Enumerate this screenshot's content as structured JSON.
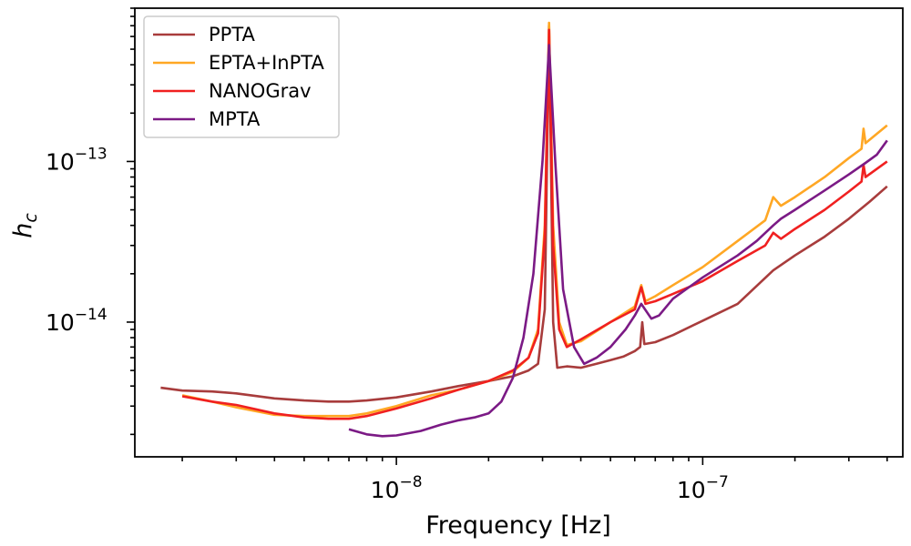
{
  "chart_data": {
    "type": "line",
    "xscale": "log",
    "yscale": "log",
    "xlabel": "Frequency [Hz]",
    "ylabel": "h_c",
    "xlim": [
      1.4e-09,
      4.5e-07
    ],
    "ylim": [
      1.45e-15,
      9e-13
    ],
    "x_tick_labels": [
      {
        "base": "10",
        "exp": "−8",
        "value": 1e-08
      },
      {
        "base": "10",
        "exp": "−7",
        "value": 1e-07
      }
    ],
    "y_tick_labels": [
      {
        "base": "10",
        "exp": "−14",
        "value": 1e-14
      },
      {
        "base": "10",
        "exp": "−13",
        "value": 1e-13
      }
    ],
    "legend_position": "upper-left",
    "series": [
      {
        "name": "PPTA",
        "color": "#a83c3c",
        "points": [
          [
            1.7e-09,
            3.9e-15
          ],
          [
            2e-09,
            3.75e-15
          ],
          [
            2.5e-09,
            3.7e-15
          ],
          [
            3e-09,
            3.6e-15
          ],
          [
            4e-09,
            3.35e-15
          ],
          [
            5e-09,
            3.25e-15
          ],
          [
            6e-09,
            3.2e-15
          ],
          [
            7e-09,
            3.2e-15
          ],
          [
            8e-09,
            3.25e-15
          ],
          [
            1e-08,
            3.4e-15
          ],
          [
            1.3e-08,
            3.7e-15
          ],
          [
            1.6e-08,
            4e-15
          ],
          [
            2e-08,
            4.3e-15
          ],
          [
            2.4e-08,
            4.6e-15
          ],
          [
            2.7e-08,
            5e-15
          ],
          [
            2.9e-08,
            5.5e-15
          ],
          [
            3.05e-08,
            1.2e-14
          ],
          [
            3.15e-08,
            7e-13
          ],
          [
            3.25e-08,
            1e-14
          ],
          [
            3.35e-08,
            5.2e-15
          ],
          [
            3.6e-08,
            5.3e-15
          ],
          [
            4e-08,
            5.2e-15
          ],
          [
            4.5e-08,
            5.5e-15
          ],
          [
            5e-08,
            5.8e-15
          ],
          [
            5.5e-08,
            6.1e-15
          ],
          [
            6e-08,
            6.6e-15
          ],
          [
            6.25e-08,
            7e-15
          ],
          [
            6.35e-08,
            1e-14
          ],
          [
            6.45e-08,
            7.3e-15
          ],
          [
            7e-08,
            7.5e-15
          ],
          [
            8e-08,
            8.3e-15
          ],
          [
            1e-07,
            1.02e-14
          ],
          [
            1.3e-07,
            1.3e-14
          ],
          [
            1.7e-07,
            2.1e-14
          ],
          [
            2e-07,
            2.6e-14
          ],
          [
            2.5e-07,
            3.4e-14
          ],
          [
            3e-07,
            4.4e-14
          ],
          [
            3.5e-07,
            5.6e-14
          ],
          [
            4e-07,
            7e-14
          ]
        ]
      },
      {
        "name": "EPTA+InPTA",
        "color": "#ffa724",
        "points": [
          [
            2e-09,
            3.5e-15
          ],
          [
            2.5e-09,
            3.2e-15
          ],
          [
            3e-09,
            2.95e-15
          ],
          [
            4e-09,
            2.65e-15
          ],
          [
            5e-09,
            2.6e-15
          ],
          [
            6e-09,
            2.6e-15
          ],
          [
            7e-09,
            2.6e-15
          ],
          [
            8e-09,
            2.7e-15
          ],
          [
            1e-08,
            3e-15
          ],
          [
            1.3e-08,
            3.5e-15
          ],
          [
            1.6e-08,
            3.8e-15
          ],
          [
            2e-08,
            4.3e-15
          ],
          [
            2.4e-08,
            4.9e-15
          ],
          [
            2.7e-08,
            6e-15
          ],
          [
            2.9e-08,
            9e-15
          ],
          [
            3.05e-08,
            4e-14
          ],
          [
            3.15e-08,
            7.3e-13
          ],
          [
            3.25e-08,
            4e-14
          ],
          [
            3.4e-08,
            1e-14
          ],
          [
            3.6e-08,
            7.2e-15
          ],
          [
            4e-08,
            7.6e-15
          ],
          [
            5e-08,
            1e-14
          ],
          [
            6e-08,
            1.25e-14
          ],
          [
            6.3e-08,
            1.7e-14
          ],
          [
            6.5e-08,
            1.35e-14
          ],
          [
            7e-08,
            1.45e-14
          ],
          [
            8e-08,
            1.7e-14
          ],
          [
            1e-07,
            2.2e-14
          ],
          [
            1.3e-07,
            3.2e-14
          ],
          [
            1.6e-07,
            4.3e-14
          ],
          [
            1.7e-07,
            6e-14
          ],
          [
            1.8e-07,
            5.3e-14
          ],
          [
            2e-07,
            6e-14
          ],
          [
            2.5e-07,
            8e-14
          ],
          [
            3e-07,
            1.05e-13
          ],
          [
            3.3e-07,
            1.2e-13
          ],
          [
            3.35e-07,
            1.6e-13
          ],
          [
            3.4e-07,
            1.3e-13
          ],
          [
            4e-07,
            1.68e-13
          ]
        ]
      },
      {
        "name": "NANOGrav",
        "color": "#f02020",
        "points": [
          [
            2e-09,
            3.45e-15
          ],
          [
            2.5e-09,
            3.2e-15
          ],
          [
            3e-09,
            3.05e-15
          ],
          [
            4e-09,
            2.7e-15
          ],
          [
            5e-09,
            2.55e-15
          ],
          [
            6e-09,
            2.5e-15
          ],
          [
            7e-09,
            2.5e-15
          ],
          [
            8e-09,
            2.6e-15
          ],
          [
            1e-08,
            2.9e-15
          ],
          [
            1.3e-08,
            3.35e-15
          ],
          [
            1.6e-08,
            3.8e-15
          ],
          [
            2e-08,
            4.3e-15
          ],
          [
            2.4e-08,
            5e-15
          ],
          [
            2.7e-08,
            6e-15
          ],
          [
            2.9e-08,
            8.5e-15
          ],
          [
            3.05e-08,
            3.5e-14
          ],
          [
            3.15e-08,
            6.6e-13
          ],
          [
            3.25e-08,
            3e-14
          ],
          [
            3.4e-08,
            9e-15
          ],
          [
            3.6e-08,
            7e-15
          ],
          [
            4e-08,
            7.8e-15
          ],
          [
            5e-08,
            1e-14
          ],
          [
            6e-08,
            1.2e-14
          ],
          [
            6.3e-08,
            1.65e-14
          ],
          [
            6.5e-08,
            1.3e-14
          ],
          [
            7e-08,
            1.35e-14
          ],
          [
            8e-08,
            1.5e-14
          ],
          [
            1e-07,
            1.8e-14
          ],
          [
            1.3e-07,
            2.4e-14
          ],
          [
            1.6e-07,
            3e-14
          ],
          [
            1.7e-07,
            3.6e-14
          ],
          [
            1.8e-07,
            3.3e-14
          ],
          [
            2e-07,
            3.8e-14
          ],
          [
            2.5e-07,
            5e-14
          ],
          [
            3e-07,
            6.5e-14
          ],
          [
            3.3e-07,
            7.5e-14
          ],
          [
            3.35e-07,
            9.5e-14
          ],
          [
            3.4e-07,
            8e-14
          ],
          [
            4e-07,
            1e-13
          ]
        ]
      },
      {
        "name": "MPTA",
        "color": "#7b1a85",
        "points": [
          [
            7e-09,
            2.15e-15
          ],
          [
            8e-09,
            2e-15
          ],
          [
            9e-09,
            1.95e-15
          ],
          [
            1e-08,
            1.97e-15
          ],
          [
            1.2e-08,
            2.1e-15
          ],
          [
            1.4e-08,
            2.3e-15
          ],
          [
            1.6e-08,
            2.45e-15
          ],
          [
            1.8e-08,
            2.55e-15
          ],
          [
            2e-08,
            2.7e-15
          ],
          [
            2.2e-08,
            3.2e-15
          ],
          [
            2.4e-08,
            4.5e-15
          ],
          [
            2.6e-08,
            8e-15
          ],
          [
            2.8e-08,
            2e-14
          ],
          [
            3e-08,
            1e-13
          ],
          [
            3.15e-08,
            5.3e-13
          ],
          [
            3.3e-08,
            1e-13
          ],
          [
            3.5e-08,
            1.6e-14
          ],
          [
            3.8e-08,
            7e-15
          ],
          [
            4.1e-08,
            5.5e-15
          ],
          [
            4.5e-08,
            6e-15
          ],
          [
            5e-08,
            7e-15
          ],
          [
            5.6e-08,
            9e-15
          ],
          [
            6e-08,
            1.1e-14
          ],
          [
            6.3e-08,
            1.3e-14
          ],
          [
            6.8e-08,
            1.05e-14
          ],
          [
            7.2e-08,
            1.1e-14
          ],
          [
            8e-08,
            1.4e-14
          ],
          [
            1e-07,
            1.9e-14
          ],
          [
            1.3e-07,
            2.6e-14
          ],
          [
            1.5e-07,
            3.2e-14
          ],
          [
            1.7e-07,
            4e-14
          ],
          [
            1.8e-07,
            4.4e-14
          ],
          [
            2e-07,
            5e-14
          ],
          [
            2.5e-07,
            6.6e-14
          ],
          [
            3e-07,
            8.3e-14
          ],
          [
            3.4e-07,
            9.8e-14
          ],
          [
            3.7e-07,
            1.1e-13
          ],
          [
            4e-07,
            1.35e-13
          ]
        ]
      }
    ]
  }
}
